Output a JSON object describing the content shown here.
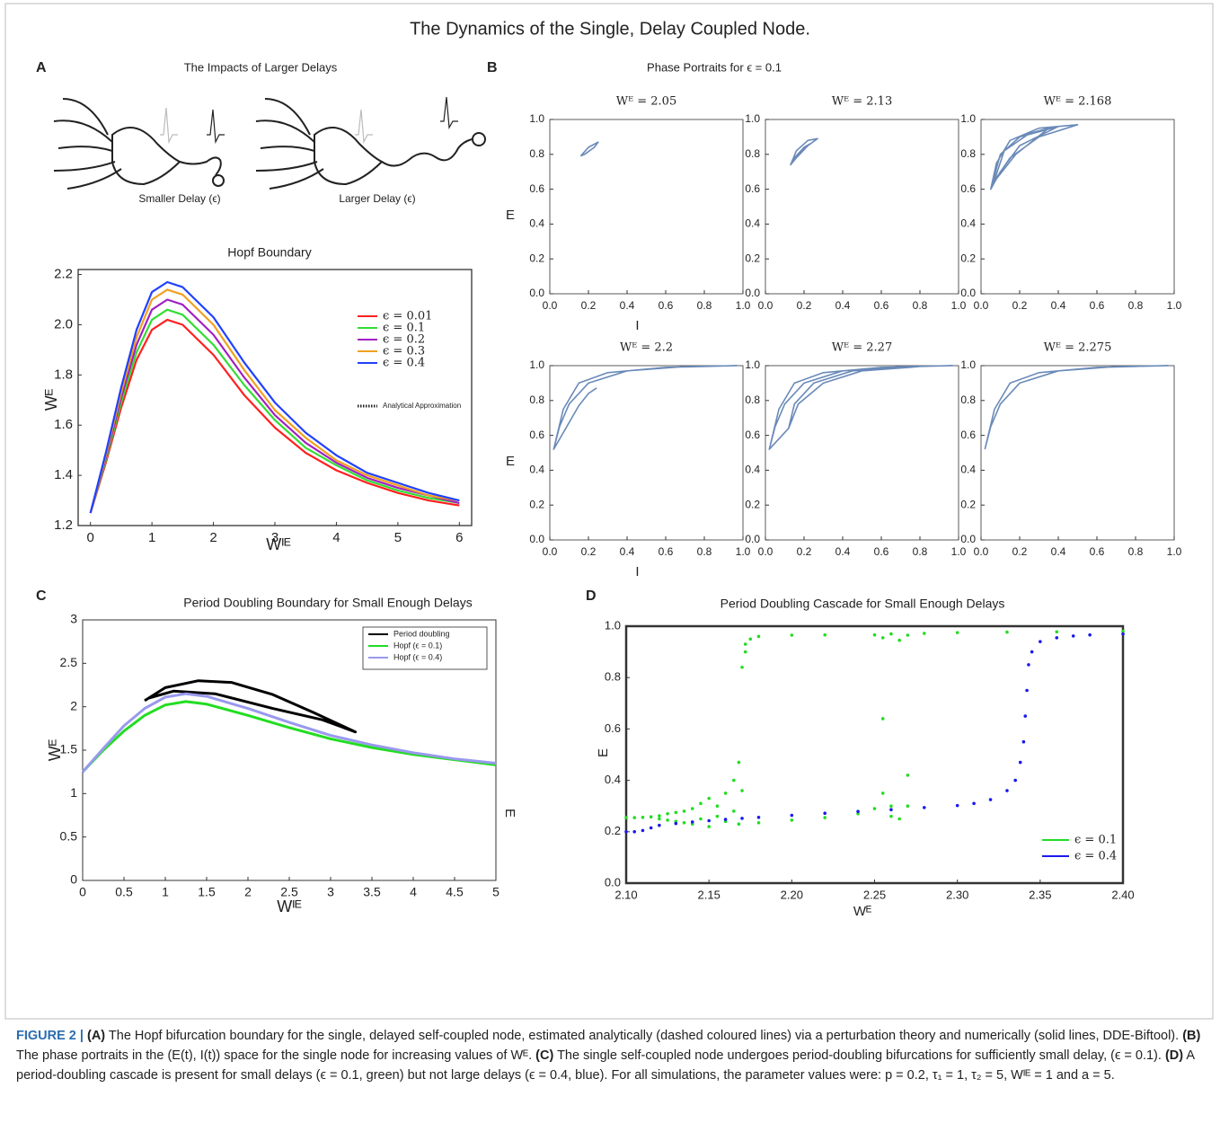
{
  "title": "The Dynamics of the Single, Delay Coupled Node.",
  "panel_labels": [
    "A",
    "B",
    "C",
    "D"
  ],
  "schematic": {
    "title": "The Impacts of Larger Delays",
    "labels": [
      "Smaller Delay (ϵ)",
      "Larger Delay (ϵ)"
    ]
  },
  "chart_data": [
    {
      "type": "line",
      "title": "Hopf Boundary",
      "xlabel": "Wᴵᴱ",
      "ylabel": "Wᴱ",
      "xlim": [
        -0.2,
        6.2
      ],
      "ylim": [
        1.2,
        2.22
      ],
      "xticks": [
        0,
        1,
        2,
        3,
        4,
        5,
        6
      ],
      "yticks": [
        1.2,
        1.4,
        1.6,
        1.8,
        {
          "value": 2,
          "label": "2.0"
        },
        2.2
      ],
      "legend": "upper right",
      "legend_note": "Analytical Approximation",
      "series": [
        {
          "name": "ϵ = 0.01",
          "color": "#ff2020",
          "x": [
            0,
            0.25,
            0.5,
            0.75,
            1,
            1.25,
            1.5,
            2,
            2.5,
            3,
            3.5,
            4,
            4.5,
            5,
            5.5,
            6
          ],
          "values": [
            1.25,
            1.45,
            1.67,
            1.86,
            1.98,
            2.02,
            2.0,
            1.88,
            1.72,
            1.59,
            1.49,
            1.42,
            1.37,
            1.33,
            1.3,
            1.28
          ]
        },
        {
          "name": "ϵ = 0.1",
          "color": "#33dd33",
          "x": [
            0,
            0.25,
            0.5,
            0.75,
            1,
            1.25,
            1.5,
            2,
            2.5,
            3,
            3.5,
            4,
            4.5,
            5,
            5.5,
            6
          ],
          "values": [
            1.25,
            1.46,
            1.69,
            1.89,
            2.02,
            2.06,
            2.04,
            1.92,
            1.76,
            1.62,
            1.51,
            1.44,
            1.38,
            1.34,
            1.31,
            1.29
          ]
        },
        {
          "name": "ϵ = 0.2",
          "color": "#a020c0",
          "x": [
            0,
            0.25,
            0.5,
            0.75,
            1,
            1.25,
            1.5,
            2,
            2.5,
            3,
            3.5,
            4,
            4.5,
            5,
            5.5,
            6
          ],
          "values": [
            1.25,
            1.47,
            1.71,
            1.92,
            2.06,
            2.1,
            2.08,
            1.96,
            1.79,
            1.64,
            1.53,
            1.45,
            1.39,
            1.35,
            1.32,
            1.29
          ]
        },
        {
          "name": "ϵ = 0.3",
          "color": "#f0a020",
          "x": [
            0,
            0.25,
            0.5,
            0.75,
            1,
            1.25,
            1.5,
            2,
            2.5,
            3,
            3.5,
            4,
            4.5,
            5,
            5.5,
            6
          ],
          "values": [
            1.25,
            1.48,
            1.73,
            1.95,
            2.1,
            2.14,
            2.12,
            2.0,
            1.82,
            1.66,
            1.55,
            1.46,
            1.4,
            1.36,
            1.32,
            1.3
          ]
        },
        {
          "name": "ϵ = 0.4",
          "color": "#2040ff",
          "x": [
            0,
            0.25,
            0.5,
            0.75,
            1,
            1.25,
            1.5,
            2,
            2.5,
            3,
            3.5,
            4,
            4.5,
            5,
            5.5,
            6
          ],
          "values": [
            1.25,
            1.49,
            1.75,
            1.98,
            2.13,
            2.17,
            2.15,
            2.03,
            1.85,
            1.69,
            1.57,
            1.48,
            1.41,
            1.37,
            1.33,
            1.3
          ]
        }
      ]
    },
    {
      "type": "phase_portraits",
      "title": "Phase Portraits for ϵ = 0.1",
      "xlabel": "I",
      "ylabel": "E",
      "xlim": [
        0,
        1
      ],
      "ylim": [
        0,
        1
      ],
      "color": "#6a8ab8",
      "xticks": [
        {
          "value": 0,
          "label": "0.0"
        },
        0.2,
        0.4,
        0.6,
        0.8,
        {
          "value": 1,
          "label": "1.0"
        }
      ],
      "yticks": [
        {
          "value": 0,
          "label": "0.0"
        },
        0.2,
        0.4,
        0.6,
        0.8,
        {
          "value": 1,
          "label": "1.0"
        }
      ],
      "subplots": [
        {
          "title": "Wᴱ = 2.05",
          "x": [
            0.16,
            0.2,
            0.25,
            0.23,
            0.18,
            0.16
          ],
          "values": [
            0.79,
            0.84,
            0.87,
            0.84,
            0.8,
            0.79
          ]
        },
        {
          "title": "Wᴱ = 2.13",
          "x": [
            0.13,
            0.16,
            0.22,
            0.27,
            0.22,
            0.16,
            0.13,
            0.17,
            0.23,
            0.2,
            0.15,
            0.13
          ],
          "values": [
            0.74,
            0.82,
            0.88,
            0.89,
            0.85,
            0.78,
            0.74,
            0.8,
            0.86,
            0.84,
            0.78,
            0.74
          ]
        },
        {
          "title": "Wᴱ = 2.168",
          "x": [
            0.05,
            0.08,
            0.15,
            0.3,
            0.5,
            0.3,
            0.15,
            0.07,
            0.05,
            0.1,
            0.2,
            0.4,
            0.2,
            0.1,
            0.06,
            0.12,
            0.25,
            0.35,
            0.18,
            0.08,
            0.05
          ],
          "values": [
            0.6,
            0.75,
            0.88,
            0.95,
            0.97,
            0.9,
            0.78,
            0.65,
            0.6,
            0.8,
            0.9,
            0.96,
            0.85,
            0.7,
            0.62,
            0.82,
            0.92,
            0.95,
            0.8,
            0.66,
            0.6
          ]
        },
        {
          "title": "Wᴱ = 2.2",
          "x": [
            0.02,
            0.05,
            0.1,
            0.2,
            0.4,
            0.7,
            0.97,
            0.6,
            0.3,
            0.15,
            0.07,
            0.02,
            0.15,
            0.2,
            0.24,
            0.2,
            0.15
          ],
          "values": [
            0.52,
            0.65,
            0.78,
            0.9,
            0.97,
            0.995,
            1.0,
            0.99,
            0.96,
            0.9,
            0.75,
            0.52,
            0.77,
            0.84,
            0.87,
            0.84,
            0.77
          ]
        },
        {
          "title": "Wᴱ = 2.27",
          "x": [
            0.02,
            0.05,
            0.1,
            0.2,
            0.4,
            0.7,
            0.97,
            0.6,
            0.3,
            0.15,
            0.07,
            0.02,
            0.12,
            0.15,
            0.25,
            0.45,
            0.8,
            0.5,
            0.3,
            0.17,
            0.12
          ],
          "values": [
            0.52,
            0.65,
            0.78,
            0.9,
            0.97,
            0.995,
            1.0,
            0.99,
            0.96,
            0.9,
            0.75,
            0.52,
            0.64,
            0.78,
            0.9,
            0.97,
            0.995,
            0.97,
            0.9,
            0.78,
            0.64
          ]
        },
        {
          "title": "Wᴱ = 2.275",
          "x": [
            0.02,
            0.05,
            0.1,
            0.2,
            0.4,
            0.7,
            0.97,
            0.6,
            0.3,
            0.15,
            0.07,
            0.02
          ],
          "values": [
            0.52,
            0.65,
            0.78,
            0.9,
            0.97,
            0.995,
            1.0,
            0.99,
            0.96,
            0.9,
            0.75,
            0.52
          ]
        }
      ]
    },
    {
      "type": "line",
      "title": "Period Doubling Boundary for Small Enough Delays",
      "xlabel": "Wᴵᴱ",
      "ylabel": "Wᴱ",
      "xlim": [
        0,
        5
      ],
      "ylim": [
        0,
        3
      ],
      "xticks": [
        0,
        0.5,
        1,
        1.5,
        2,
        2.5,
        3,
        3.5,
        4,
        4.5,
        5
      ],
      "yticks": [
        0,
        0.5,
        1,
        1.5,
        2,
        2.5,
        3
      ],
      "legend": "upper right",
      "series": [
        {
          "name": "Period doubling",
          "color": "#000000",
          "x": [
            0.75,
            1.0,
            1.4,
            1.8,
            2.3,
            2.8,
            3.3,
            2.9,
            2.3,
            1.6,
            1.1,
            0.8,
            0.75
          ],
          "values": [
            2.07,
            2.22,
            2.3,
            2.28,
            2.14,
            1.93,
            1.71,
            1.85,
            1.98,
            2.15,
            2.18,
            2.1,
            2.07
          ]
        },
        {
          "name": "Hopf (ϵ = 0.1)",
          "color": "#22dd22",
          "x": [
            0,
            0.25,
            0.5,
            0.75,
            1,
            1.25,
            1.5,
            2,
            2.5,
            3,
            3.5,
            4,
            4.5,
            5
          ],
          "values": [
            1.25,
            1.5,
            1.72,
            1.9,
            2.02,
            2.06,
            2.03,
            1.9,
            1.76,
            1.63,
            1.53,
            1.45,
            1.39,
            1.33
          ]
        },
        {
          "name": "Hopf (ϵ = 0.4)",
          "color": "#9999ee",
          "x": [
            0,
            0.25,
            0.5,
            0.75,
            1,
            1.25,
            1.5,
            2,
            2.5,
            3,
            3.5,
            4,
            4.5,
            5
          ],
          "values": [
            1.25,
            1.52,
            1.78,
            1.98,
            2.11,
            2.15,
            2.12,
            1.98,
            1.82,
            1.67,
            1.56,
            1.47,
            1.4,
            1.35
          ]
        }
      ]
    },
    {
      "type": "scatter",
      "title": "Period Doubling Cascade for Small Enough Delays",
      "xlabel": "Wᴱ",
      "ylabel": "E",
      "xlim": [
        2.1,
        2.4
      ],
      "ylim": [
        0,
        1
      ],
      "xticks": [
        {
          "value": 2.1,
          "label": "2.10"
        },
        2.15,
        {
          "value": 2.2,
          "label": "2.20"
        },
        2.25,
        {
          "value": 2.3,
          "label": "2.30"
        },
        2.35,
        {
          "value": 2.4,
          "label": "2.40"
        }
      ],
      "yticks": [
        {
          "value": 0,
          "label": "0.0"
        },
        0.2,
        0.4,
        0.6,
        0.8,
        {
          "value": 1,
          "label": "1.0"
        }
      ],
      "legend": "lower right",
      "series": [
        {
          "name": "ϵ = 0.1",
          "color": "#22dd22",
          "x": [
            2.1,
            2.105,
            2.11,
            2.115,
            2.12,
            2.12,
            2.125,
            2.125,
            2.13,
            2.13,
            2.135,
            2.135,
            2.14,
            2.14,
            2.145,
            2.145,
            2.15,
            2.15,
            2.155,
            2.155,
            2.16,
            2.16,
            2.165,
            2.165,
            2.168,
            2.168,
            2.17,
            2.17,
            2.172,
            2.172,
            2.175,
            2.18,
            2.2,
            2.22,
            2.25,
            2.255,
            2.26,
            2.265,
            2.27,
            2.28,
            2.3,
            2.33,
            2.36,
            2.4,
            2.18,
            2.2,
            2.22,
            2.24,
            2.25,
            2.255,
            2.255,
            2.26,
            2.26,
            2.265,
            2.27,
            2.27
          ],
          "values": [
            0.255,
            0.255,
            0.256,
            0.258,
            0.262,
            0.25,
            0.27,
            0.245,
            0.275,
            0.24,
            0.28,
            0.235,
            0.29,
            0.23,
            0.31,
            0.25,
            0.33,
            0.22,
            0.3,
            0.26,
            0.35,
            0.24,
            0.4,
            0.28,
            0.47,
            0.23,
            0.36,
            0.84,
            0.9,
            0.93,
            0.95,
            0.96,
            0.965,
            0.966,
            0.966,
            0.955,
            0.97,
            0.945,
            0.965,
            0.972,
            0.975,
            0.977,
            0.978,
            0.98,
            0.235,
            0.245,
            0.255,
            0.27,
            0.29,
            0.64,
            0.35,
            0.3,
            0.26,
            0.25,
            0.42,
            0.3
          ]
        },
        {
          "name": "ϵ = 0.4",
          "color": "#1a1aee",
          "x": [
            2.1,
            2.105,
            2.11,
            2.115,
            2.12,
            2.13,
            2.14,
            2.15,
            2.16,
            2.17,
            2.18,
            2.2,
            2.22,
            2.24,
            2.26,
            2.28,
            2.3,
            2.31,
            2.32,
            2.33,
            2.335,
            2.338,
            2.34,
            2.341,
            2.342,
            2.343,
            2.345,
            2.35,
            2.36,
            2.37,
            2.38,
            2.4
          ],
          "values": [
            0.2,
            0.2,
            0.205,
            0.215,
            0.225,
            0.232,
            0.238,
            0.243,
            0.248,
            0.252,
            0.256,
            0.264,
            0.272,
            0.279,
            0.286,
            0.294,
            0.302,
            0.31,
            0.325,
            0.36,
            0.4,
            0.47,
            0.55,
            0.65,
            0.75,
            0.85,
            0.9,
            0.94,
            0.955,
            0.962,
            0.966,
            0.97
          ]
        }
      ]
    }
  ],
  "caption": [
    {
      "text": "FIGURE 2 | ",
      "bold": true
    },
    {
      "text": "(A)",
      "bold": true
    },
    {
      "text": " The Hopf bifurcation boundary for the single, delayed self-coupled node, estimated analytically (dashed coloured lines) via a perturbation theory and numerically (solid lines, DDE-Biftool). ",
      "bold": false
    },
    {
      "text": "(B)",
      "bold": true
    },
    {
      "text": " The phase portraits in the (E(t), I(t)) space for the single node for increasing values of Wᴱ. ",
      "bold": false
    },
    {
      "text": "(C)",
      "bold": true
    },
    {
      "text": " The single self-coupled node undergoes period-doubling bifurcations for sufficiently small delay, (ϵ = 0.1). ",
      "bold": false
    },
    {
      "text": "(D)",
      "bold": true
    },
    {
      "text": " A period-doubling cascade is present for small delays (ϵ = 0.1, green) but not large delays (ϵ = 0.4, blue). For all simulations, the parameter values were: p = 0.2, τ₁ = 1, τ₂ = 5, Wᴵᴱ = 1 and a = 5.",
      "bold": false
    }
  ]
}
